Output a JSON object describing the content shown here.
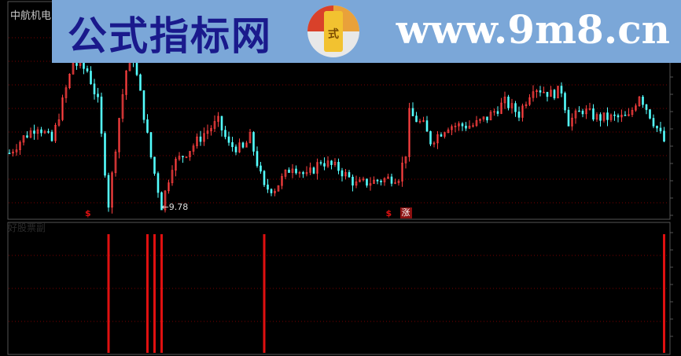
{
  "main_chart": {
    "title": "中航机电(日线)",
    "low_label": "9.78",
    "signal_badge": "涨",
    "s_marker": "$",
    "colors": {
      "up": "#ff4040",
      "down": "#54ffff",
      "grid": "#7a0000",
      "frame": "#555555",
      "signal": "#e01010"
    }
  },
  "sub_chart": {
    "title": "好股票副"
  },
  "banner": {
    "cn_text": "公式指标网",
    "url_text": "www.9m8.cn",
    "logo_text": "公式指标网"
  },
  "chart_data": {
    "type": "line",
    "title": "中航机电(日线)",
    "xlabel": "",
    "ylabel": "",
    "points": [
      [
        0,
        10.99
      ],
      [
        4,
        11.35
      ],
      [
        8,
        11.62
      ],
      [
        12,
        11.26
      ],
      [
        15,
        12.16
      ],
      [
        18,
        13.06
      ],
      [
        22,
        12.88
      ],
      [
        25,
        12.16
      ],
      [
        28,
        9.82
      ],
      [
        31,
        11.8
      ],
      [
        33,
        12.88
      ],
      [
        35,
        13.15
      ],
      [
        37,
        12.34
      ],
      [
        40,
        10.9
      ],
      [
        43,
        9.78
      ],
      [
        46,
        10.72
      ],
      [
        51,
        11.08
      ],
      [
        55,
        11.44
      ],
      [
        59,
        11.71
      ],
      [
        62,
        11.17
      ],
      [
        66,
        11.08
      ],
      [
        68,
        11.35
      ],
      [
        72,
        10.18
      ],
      [
        75,
        10.18
      ],
      [
        80,
        10.72
      ],
      [
        84,
        10.45
      ],
      [
        88,
        10.81
      ],
      [
        93,
        10.63
      ],
      [
        98,
        10.27
      ],
      [
        104,
        10.36
      ],
      [
        110,
        10.45
      ],
      [
        112,
        10.99
      ],
      [
        113,
        11.89
      ],
      [
        117,
        11.62
      ],
      [
        119,
        11.26
      ],
      [
        124,
        11.62
      ],
      [
        131,
        11.62
      ],
      [
        135,
        11.8
      ],
      [
        140,
        12.16
      ],
      [
        144,
        11.89
      ],
      [
        148,
        12.52
      ],
      [
        153,
        12.34
      ],
      [
        156,
        12.43
      ],
      [
        158,
        11.71
      ],
      [
        162,
        11.98
      ],
      [
        166,
        11.8
      ],
      [
        171,
        11.8
      ],
      [
        175,
        11.8
      ],
      [
        178,
        12.34
      ],
      [
        182,
        11.71
      ],
      [
        185,
        11.26
      ]
    ],
    "low_point": {
      "bar": 43,
      "value": 9.78
    },
    "s_markers": [
      22,
      107
    ],
    "zhang_marker": 111,
    "signal_bars": [
      28,
      39,
      41,
      43,
      72,
      185
    ],
    "grid": true
  }
}
